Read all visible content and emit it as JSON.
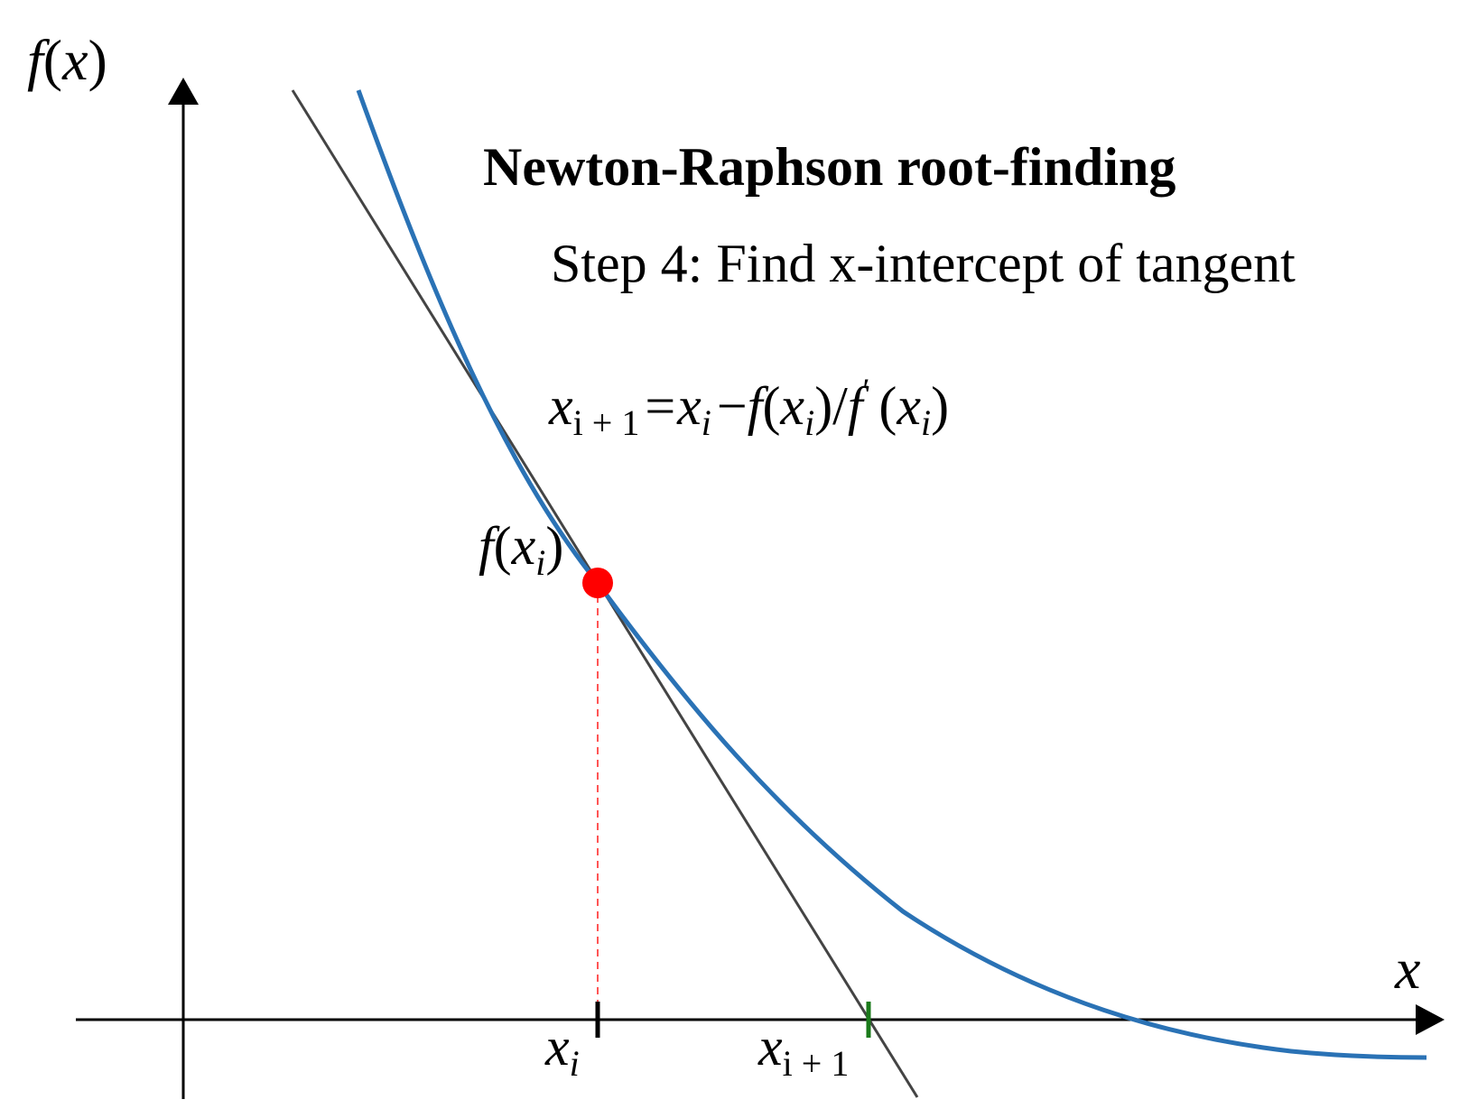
{
  "title": "Newton-Raphson root-finding",
  "step_text": "Step 4: Find x-intercept of tangent",
  "formula": {
    "lhs_var": "x",
    "lhs_sub": "i + 1",
    "equals": "=",
    "x": "x",
    "i": "i",
    "minus": "−",
    "f": "f",
    "open": "(",
    "close": ")",
    "slash": "/",
    "prime": "′"
  },
  "axis_labels": {
    "y_f": "f",
    "y_open": "(",
    "y_x": "x",
    "y_close": ")",
    "x": "x"
  },
  "point_label": {
    "f": "f",
    "open": "(",
    "x": "x",
    "sub": "i",
    "close": ")"
  },
  "tick_labels": {
    "xi_var": "x",
    "xi_sub": "i",
    "xi1_var": "x",
    "xi1_sub": "i + 1"
  },
  "colors": {
    "curve": "#2a72b5",
    "tangent": "#444444",
    "point": "#ff0000",
    "dashed": "#ff5555",
    "tick_xi": "#000000",
    "tick_xi1": "#1a7a1a",
    "axis": "#000000"
  }
}
